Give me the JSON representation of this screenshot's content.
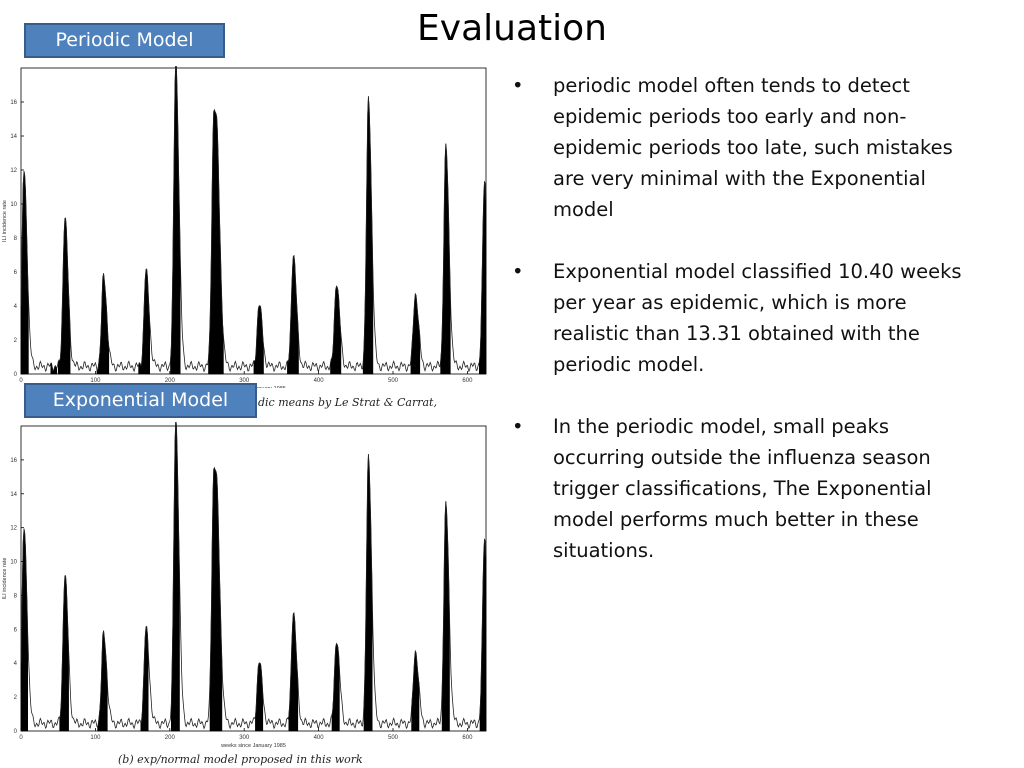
{
  "slide": {
    "title": "Evaluation",
    "periodic_label": "Periodic Model",
    "exponential_label": "Exponential Model",
    "caption_top": "dic means by Le Strat & Carrat,",
    "caption_bottom": "(b)  exp/normal model proposed in this work",
    "bullets": [
      {
        "marker": "•",
        "text": "periodic model often tends to detect epidemic periods too early and non-epidemic periods too late,  such mistakes are very minimal with the Exponential model"
      },
      {
        "marker": "•",
        "text": "Exponential model classified 10.40 weeks per year as epidemic, which is more realistic than 13.31 obtained with the periodic model."
      },
      {
        "marker": "•",
        "text": "In the periodic model, small peaks occurring outside the influenza season trigger classifications, The Exponential model performs much better in these situations."
      }
    ]
  },
  "chart_data": [
    {
      "type": "area",
      "xlabel": "weeks since January 1985",
      "ylabel": "ILI incidence rate",
      "xlim": [
        0,
        625
      ],
      "ylim": [
        0,
        18
      ],
      "x_ticks": [
        0,
        100,
        200,
        300,
        400,
        500,
        600
      ],
      "y_ticks": [
        0,
        2,
        4,
        6,
        8,
        10,
        12,
        14,
        16
      ],
      "peaks": [
        {
          "week": 4,
          "height": 11.5
        },
        {
          "week": 59,
          "height": 8.8
        },
        {
          "week": 111,
          "height": 5.3
        },
        {
          "week": 168,
          "height": 5.6
        },
        {
          "week": 208,
          "height": 18.0
        },
        {
          "week": 259,
          "height": 14.5
        },
        {
          "week": 265,
          "height": 7.0
        },
        {
          "week": 320,
          "height": 3.7
        },
        {
          "week": 366,
          "height": 6.6
        },
        {
          "week": 424,
          "height": 5.0
        },
        {
          "week": 467,
          "height": 15.7
        },
        {
          "week": 530,
          "height": 4.3
        },
        {
          "week": 571,
          "height": 12.9
        },
        {
          "week": 623,
          "height": 11.0
        }
      ],
      "shaded_intervals": [
        [
          0,
          10
        ],
        [
          40,
          48
        ],
        [
          50,
          66
        ],
        [
          102,
          118
        ],
        [
          158,
          173
        ],
        [
          201,
          214
        ],
        [
          252,
          272
        ],
        [
          313,
          326
        ],
        [
          358,
          373
        ],
        [
          416,
          430
        ],
        [
          460,
          473
        ],
        [
          524,
          536
        ],
        [
          564,
          577
        ],
        [
          616,
          625
        ]
      ]
    },
    {
      "type": "area",
      "xlabel": "weeks since January 1985",
      "ylabel": "ILI incidence rate",
      "xlim": [
        0,
        625
      ],
      "ylim": [
        0,
        18
      ],
      "x_ticks": [
        0,
        100,
        200,
        300,
        400,
        500,
        600
      ],
      "y_ticks": [
        0,
        2,
        4,
        6,
        8,
        10,
        12,
        14,
        16
      ],
      "peaks": [
        {
          "week": 4,
          "height": 11.5
        },
        {
          "week": 59,
          "height": 8.8
        },
        {
          "week": 111,
          "height": 5.3
        },
        {
          "week": 168,
          "height": 5.6
        },
        {
          "week": 208,
          "height": 18.0
        },
        {
          "week": 259,
          "height": 14.5
        },
        {
          "week": 265,
          "height": 7.0
        },
        {
          "week": 320,
          "height": 3.7
        },
        {
          "week": 366,
          "height": 6.6
        },
        {
          "week": 424,
          "height": 5.0
        },
        {
          "week": 467,
          "height": 15.7
        },
        {
          "week": 530,
          "height": 4.3
        },
        {
          "week": 571,
          "height": 12.9
        },
        {
          "week": 623,
          "height": 11.0
        }
      ],
      "shaded_intervals": [
        [
          0,
          9
        ],
        [
          52,
          64
        ],
        [
          103,
          116
        ],
        [
          161,
          171
        ],
        [
          202,
          213
        ],
        [
          254,
          270
        ],
        [
          315,
          325
        ],
        [
          360,
          372
        ],
        [
          418,
          428
        ],
        [
          461,
          472
        ],
        [
          525,
          535
        ],
        [
          566,
          576
        ],
        [
          617,
          625
        ]
      ]
    }
  ]
}
